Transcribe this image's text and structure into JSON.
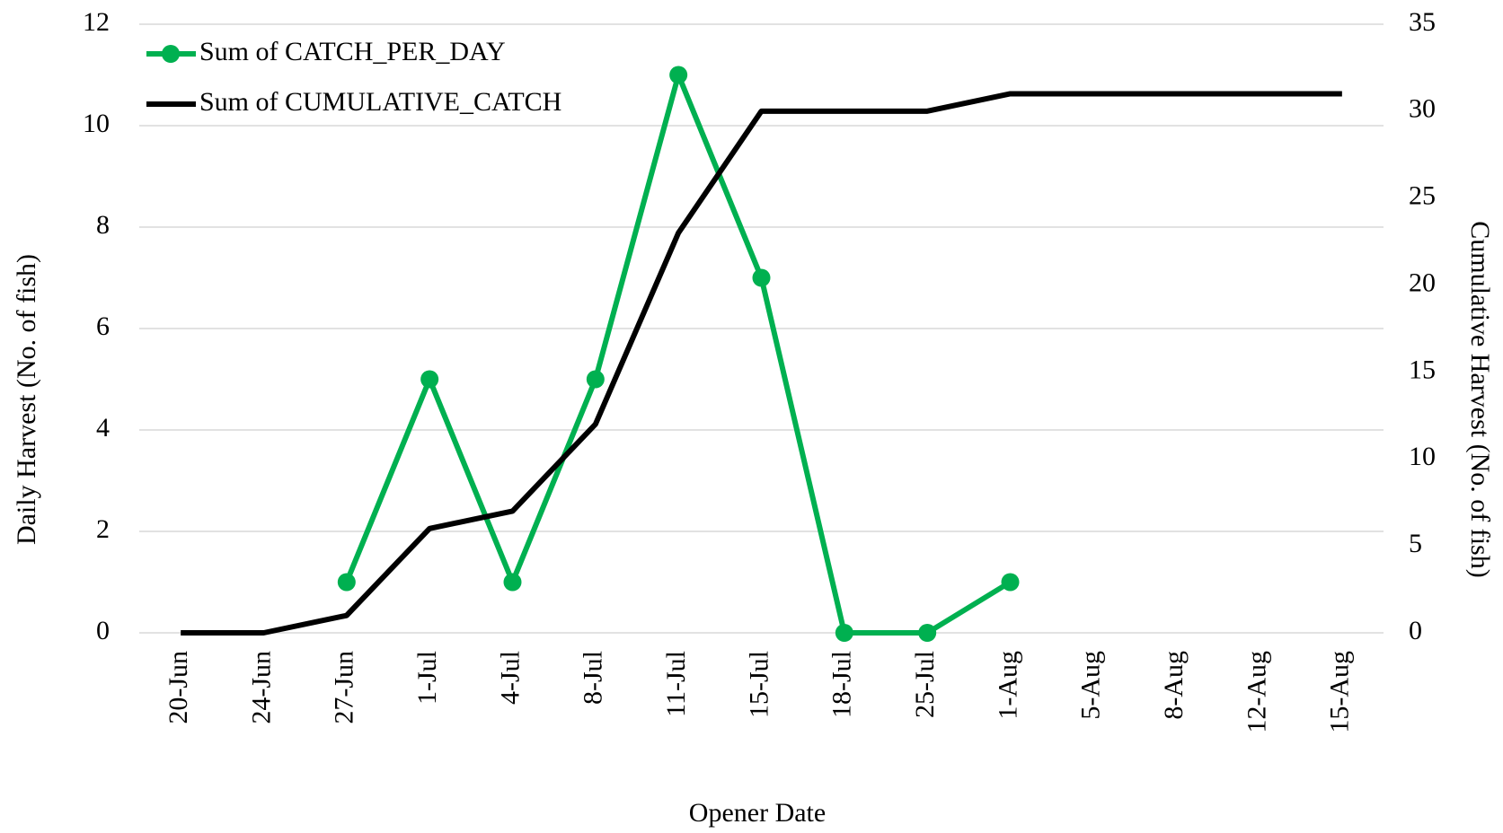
{
  "chart_data": {
    "type": "line",
    "x_label": "Opener Date",
    "y_label": "Daily Harvest (No. of fish)",
    "y2_label": "Cumulative Harvest (No. of fish)",
    "categories": [
      "20-Jun",
      "24-Jun",
      "27-Jun",
      "1-Jul",
      "4-Jul",
      "8-Jul",
      "11-Jul",
      "15-Jul",
      "18-Jul",
      "25-Jul",
      "1-Aug",
      "5-Aug",
      "8-Aug",
      "12-Aug",
      "15-Aug"
    ],
    "series": [
      {
        "name": "Sum of CATCH_PER_DAY",
        "color": "#00b050",
        "markers": true,
        "values": [
          null,
          null,
          1,
          5,
          1,
          5,
          11,
          7,
          0,
          0,
          1,
          null,
          null,
          null,
          null
        ]
      },
      {
        "name": "Sum of CUMULATIVE_CATCH",
        "color": "#000000",
        "axis": "y2",
        "markers": false,
        "values": [
          0,
          0,
          1,
          6,
          7,
          12,
          23,
          30,
          30,
          30,
          31,
          31,
          31,
          31,
          31
        ]
      }
    ],
    "ylim": [
      0,
      12
    ],
    "yticks": [
      0,
      2,
      4,
      6,
      8,
      10,
      12
    ],
    "y2lim": [
      0,
      35
    ],
    "y2ticks": [
      0,
      5,
      10,
      15,
      20,
      25,
      30,
      35
    ],
    "grid": true,
    "legend": "top-left"
  }
}
